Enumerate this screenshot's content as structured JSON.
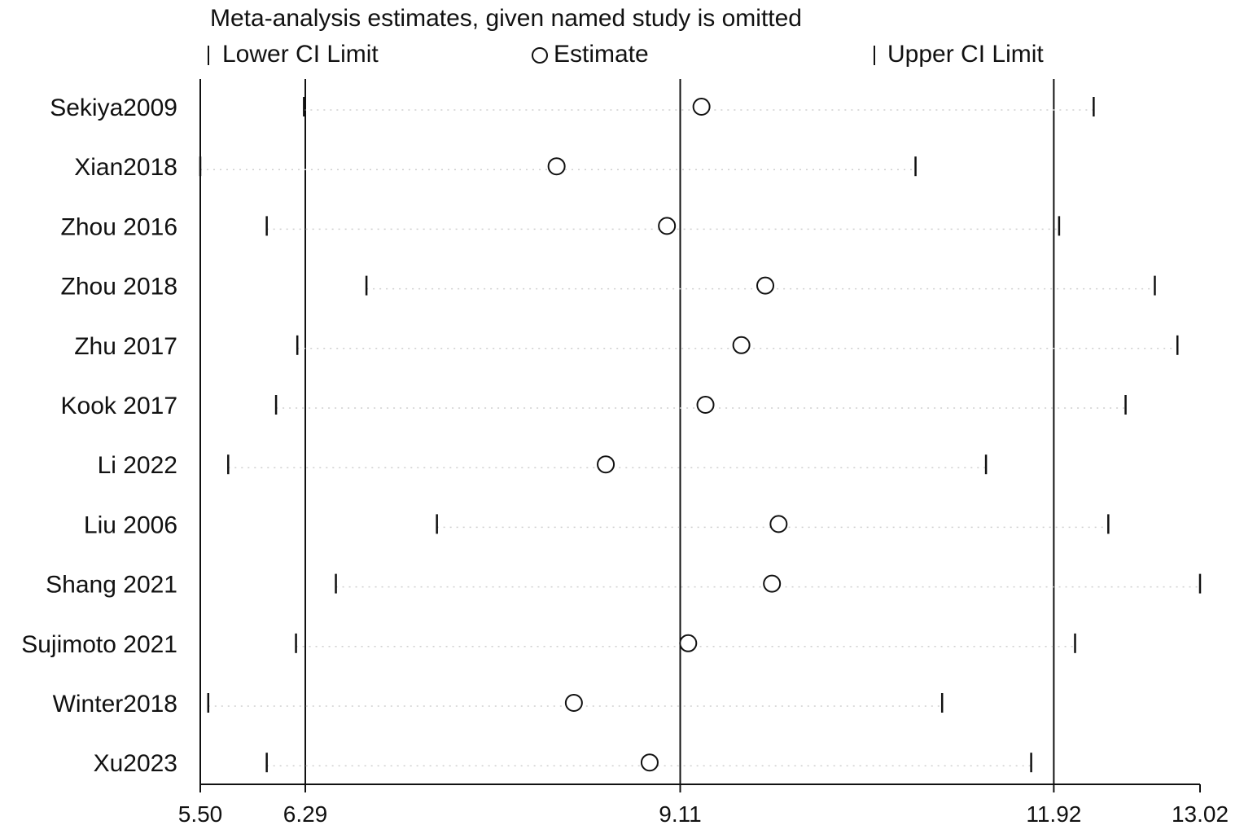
{
  "chart_data": {
    "type": "scatter",
    "title": "Meta-analysis estimates, given named study is omitted",
    "legend": {
      "placement": "top",
      "lower_label": "Lower CI Limit",
      "estimate_label": "Estimate",
      "upper_label": "Upper CI Limit"
    },
    "xlim": [
      5.5,
      13.02
    ],
    "x_ticks": [
      "5.50",
      "6.29",
      "9.11",
      "11.92",
      "13.02"
    ],
    "reference_lines": [
      6.29,
      9.11,
      11.92
    ],
    "studies": [
      {
        "name": "Sekiya2009",
        "lower": 6.28,
        "estimate": 9.27,
        "upper": 12.22
      },
      {
        "name": "Xian2018",
        "lower": 5.5,
        "estimate": 8.18,
        "upper": 10.88
      },
      {
        "name": "Zhou 2016",
        "lower": 6.0,
        "estimate": 9.01,
        "upper": 11.96
      },
      {
        "name": "Zhou 2018",
        "lower": 6.75,
        "estimate": 9.75,
        "upper": 12.68
      },
      {
        "name": "Zhu 2017",
        "lower": 6.23,
        "estimate": 9.57,
        "upper": 12.85
      },
      {
        "name": "Kook 2017",
        "lower": 6.07,
        "estimate": 9.3,
        "upper": 12.46
      },
      {
        "name": "Li 2022",
        "lower": 5.71,
        "estimate": 8.55,
        "upper": 11.41
      },
      {
        "name": "Liu 2006",
        "lower": 7.28,
        "estimate": 9.85,
        "upper": 12.33
      },
      {
        "name": "Shang 2021",
        "lower": 6.52,
        "estimate": 9.8,
        "upper": 13.02
      },
      {
        "name": "Sujimoto 2021",
        "lower": 6.22,
        "estimate": 9.17,
        "upper": 12.08
      },
      {
        "name": "Winter2018",
        "lower": 5.56,
        "estimate": 8.31,
        "upper": 11.08
      },
      {
        "name": "Xu2023",
        "lower": 6.0,
        "estimate": 8.88,
        "upper": 11.75
      }
    ]
  }
}
